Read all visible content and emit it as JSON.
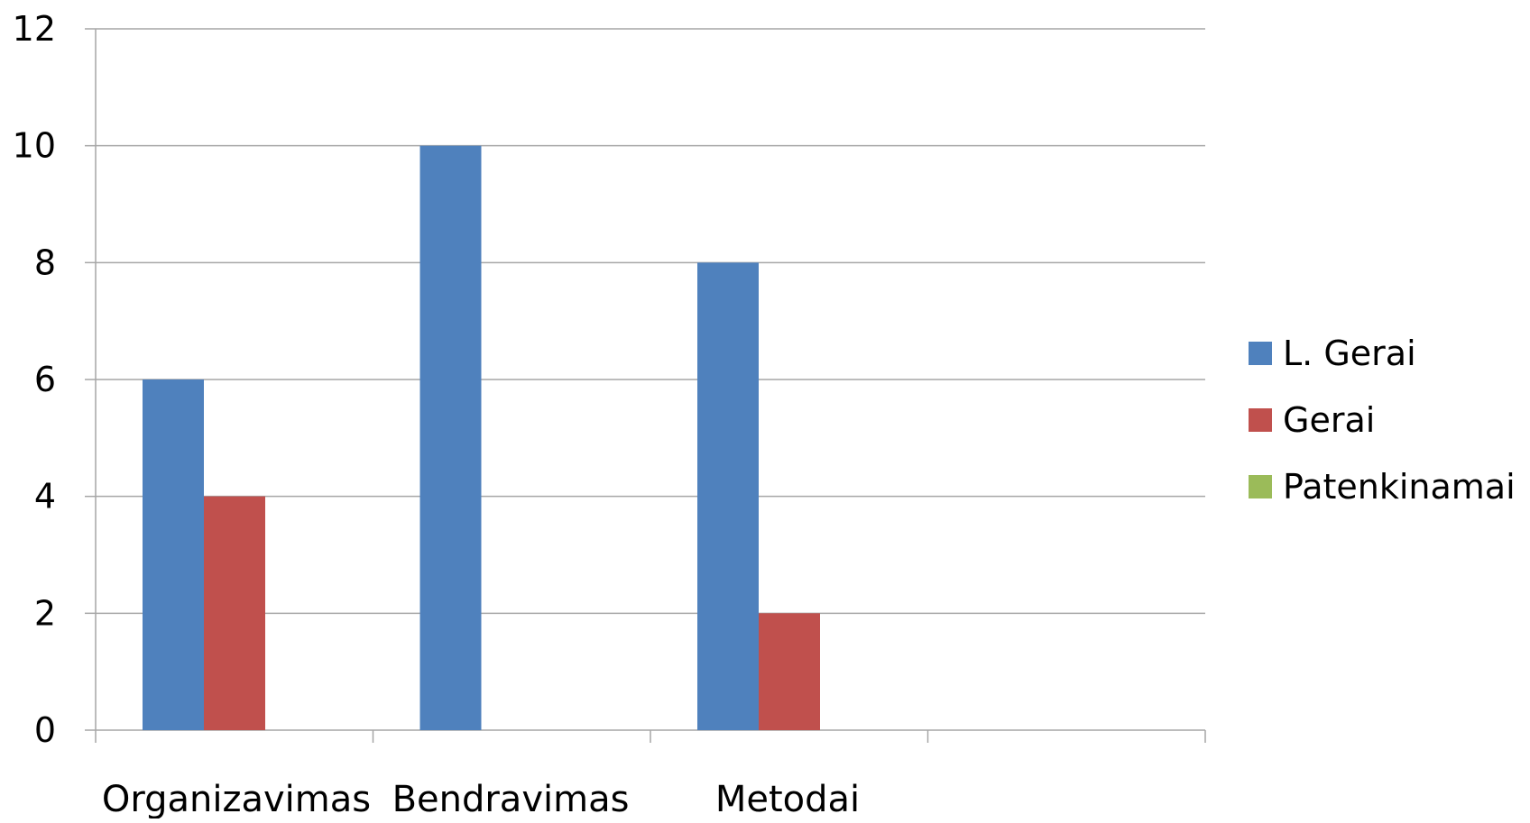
{
  "chart_data": {
    "type": "bar",
    "categories": [
      "Organizavimas",
      "Bendravimas",
      "Metodai",
      ""
    ],
    "series": [
      {
        "name": "L. Gerai",
        "values": [
          6,
          10,
          8,
          null
        ],
        "color": "#4F81BD"
      },
      {
        "name": "Gerai",
        "values": [
          4,
          0,
          2,
          null
        ],
        "color": "#C0504D"
      },
      {
        "name": "Patenkinamai",
        "values": [
          0,
          0,
          0,
          null
        ],
        "color": "#9BBB59"
      }
    ],
    "title": "",
    "xlabel": "",
    "ylabel": "",
    "ylim": [
      0,
      12
    ],
    "yticks": [
      "0",
      "2",
      "4",
      "6",
      "8",
      "10",
      "12"
    ],
    "grid": true,
    "legend_position": "right",
    "colors": {
      "gridline": "#A6A6A6",
      "axis": "#A6A6A6"
    }
  }
}
